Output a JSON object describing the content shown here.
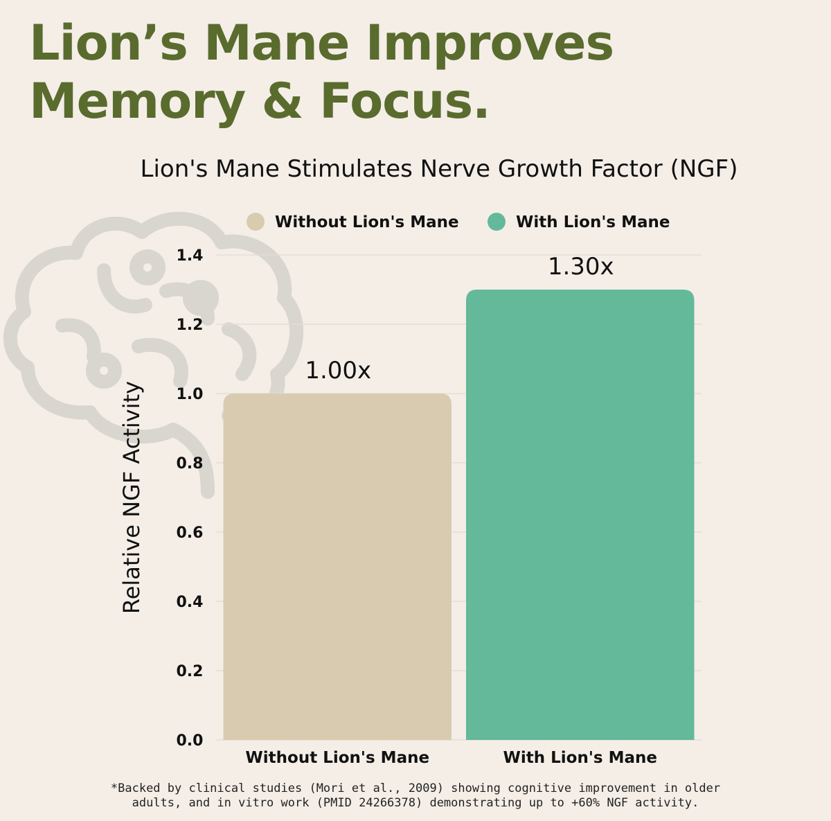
{
  "headline": {
    "line1": "Lion’s Mane Improves",
    "line2": "Memory & Focus."
  },
  "footnote": {
    "line1": "*Backed by clinical studies (Mori et al., 2009) showing cognitive improvement in older",
    "line2": "adults, and in vitro work (PMID 24266378) demonstrating up to +60% NGF activity."
  },
  "decoration": {
    "icon": "brain-icon"
  },
  "colors": {
    "headline": "#5a6b2e",
    "without": "#d8cbb0",
    "with": "#63b99a",
    "background": "#f4eee7"
  },
  "chart_data": {
    "type": "bar",
    "title": "Lion's Mane Stimulates Nerve Growth Factor (NGF)",
    "xlabel": "",
    "ylabel": "Relative NGF Activity",
    "ylim": [
      0,
      1.4
    ],
    "yticks": [
      "0.0",
      "0.2",
      "0.4",
      "0.6",
      "0.8",
      "1.0",
      "1.2",
      "1.4"
    ],
    "categories": [
      "Without Lion's Mane",
      "With Lion's Mane"
    ],
    "values": [
      1.0,
      1.3
    ],
    "value_labels": [
      "1.00x",
      "1.30x"
    ],
    "bar_colors": [
      "#d8cbb0",
      "#63b99a"
    ],
    "legend": {
      "position": "top",
      "entries": [
        {
          "label": "Without Lion's Mane",
          "color": "#d8cbb0"
        },
        {
          "label": "With Lion's Mane",
          "color": "#63b99a"
        }
      ]
    },
    "grid": true
  }
}
